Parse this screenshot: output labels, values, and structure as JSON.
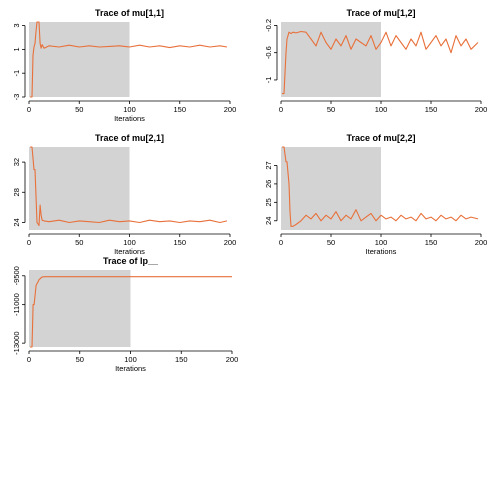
{
  "chart_data": [
    {
      "type": "line",
      "title": "Trace of  mu[1,1]",
      "xlabel": "Iterations",
      "ylabel": "",
      "xlim": [
        0,
        200
      ],
      "ylim": [
        -3,
        3.3
      ],
      "xticks": [
        0,
        50,
        100,
        150,
        200
      ],
      "yticks": [
        -3,
        -1,
        1,
        3
      ],
      "warmup_end": 100,
      "line_color": "#e8703a",
      "shade_color": "#d3d3d3",
      "series": [
        {
          "name": "",
          "x": [
            1,
            3,
            4,
            5,
            6,
            7,
            8,
            9,
            10,
            11,
            12,
            13,
            15,
            20,
            30,
            40,
            50,
            60,
            70,
            80,
            90,
            100,
            110,
            120,
            130,
            140,
            150,
            160,
            170,
            180,
            190,
            197
          ],
          "values": [
            -3,
            -3,
            0.5,
            1.2,
            1.5,
            2.5,
            3.3,
            3.3,
            3.3,
            1.5,
            1.1,
            1.4,
            1.1,
            1.3,
            1.2,
            1.35,
            1.2,
            1.3,
            1.2,
            1.25,
            1.3,
            1.2,
            1.35,
            1.2,
            1.3,
            1.15,
            1.3,
            1.2,
            1.35,
            1.2,
            1.3,
            1.2
          ]
        }
      ]
    },
    {
      "type": "line",
      "title": "Trace of  mu[1,2]",
      "xlabel": "",
      "ylabel": "",
      "xlim": [
        0,
        200
      ],
      "ylim": [
        -1.25,
        -0.15
      ],
      "xticks": [
        0,
        50,
        100,
        150,
        200
      ],
      "yticks": [
        -1.0,
        -0.6,
        -0.2
      ],
      "warmup_end": 100,
      "line_color": "#e8703a",
      "shade_color": "#d3d3d3",
      "series": [
        {
          "name": "",
          "x": [
            1,
            3,
            4,
            5,
            6,
            7,
            8,
            10,
            12,
            15,
            20,
            25,
            30,
            35,
            40,
            45,
            50,
            55,
            60,
            65,
            70,
            75,
            80,
            85,
            90,
            95,
            100,
            105,
            110,
            115,
            120,
            125,
            130,
            135,
            140,
            145,
            150,
            155,
            160,
            165,
            170,
            175,
            180,
            185,
            190,
            197
          ],
          "values": [
            -1.2,
            -1.2,
            -0.9,
            -0.6,
            -0.4,
            -0.35,
            -0.3,
            -0.32,
            -0.3,
            -0.31,
            -0.29,
            -0.3,
            -0.4,
            -0.5,
            -0.3,
            -0.45,
            -0.55,
            -0.4,
            -0.5,
            -0.35,
            -0.55,
            -0.4,
            -0.45,
            -0.5,
            -0.35,
            -0.55,
            -0.45,
            -0.3,
            -0.5,
            -0.35,
            -0.45,
            -0.55,
            -0.4,
            -0.5,
            -0.3,
            -0.55,
            -0.45,
            -0.35,
            -0.5,
            -0.4,
            -0.6,
            -0.35,
            -0.5,
            -0.4,
            -0.55,
            -0.45
          ]
        }
      ]
    },
    {
      "type": "line",
      "title": "Trace of  mu[2,1]",
      "xlabel": "Iterations",
      "ylabel": "",
      "xlim": [
        0,
        200
      ],
      "ylim": [
        23,
        34
      ],
      "xticks": [
        0,
        50,
        100,
        150,
        200
      ],
      "yticks": [
        24,
        28,
        32
      ],
      "warmup_end": 100,
      "line_color": "#e8703a",
      "shade_color": "#d3d3d3",
      "series": [
        {
          "name": "",
          "x": [
            1,
            3,
            5,
            6,
            8,
            10,
            11,
            12,
            13,
            15,
            20,
            30,
            40,
            50,
            60,
            70,
            80,
            90,
            100,
            110,
            120,
            130,
            140,
            150,
            160,
            170,
            180,
            190,
            197
          ],
          "values": [
            34,
            34,
            31,
            31,
            24,
            23.6,
            26.3,
            25,
            24.3,
            24.2,
            24.1,
            24.3,
            24.0,
            24.2,
            24.1,
            24.0,
            24.3,
            24.1,
            24.2,
            24.0,
            24.3,
            24.1,
            24.2,
            24.0,
            24.2,
            24.1,
            24.3,
            24.0,
            24.2
          ]
        }
      ]
    },
    {
      "type": "line",
      "title": "Trace of  mu[2,2]",
      "xlabel": "Iterations",
      "ylabel": "",
      "xlim": [
        0,
        200
      ],
      "ylim": [
        23.5,
        28
      ],
      "xticks": [
        0,
        50,
        100,
        150,
        200
      ],
      "yticks": [
        24,
        25,
        26,
        27
      ],
      "warmup_end": 100,
      "line_color": "#e8703a",
      "shade_color": "#d3d3d3",
      "series": [
        {
          "name": "",
          "x": [
            1,
            3,
            5,
            6,
            8,
            9,
            10,
            12,
            15,
            20,
            25,
            30,
            35,
            40,
            45,
            50,
            55,
            60,
            65,
            70,
            75,
            80,
            85,
            90,
            95,
            100,
            105,
            110,
            115,
            120,
            125,
            130,
            135,
            140,
            145,
            150,
            155,
            160,
            165,
            170,
            175,
            180,
            185,
            190,
            197
          ],
          "values": [
            28,
            28,
            27.2,
            27.2,
            26,
            24.5,
            23.7,
            23.7,
            23.8,
            24.0,
            24.3,
            24.1,
            24.4,
            24.0,
            24.3,
            24.1,
            24.5,
            24.0,
            24.3,
            24.1,
            24.6,
            24.0,
            24.2,
            24.4,
            24.0,
            24.3,
            24.1,
            24.2,
            24.0,
            24.3,
            24.1,
            24.2,
            24.0,
            24.4,
            24.1,
            24.2,
            24.0,
            24.3,
            24.1,
            24.2,
            24.0,
            24.3,
            24.1,
            24.2,
            24.1
          ]
        }
      ]
    },
    {
      "type": "line",
      "title": "Trace of  lp__",
      "xlabel": "Iterations",
      "ylabel": "",
      "xlim": [
        0,
        200
      ],
      "ylim": [
        -13200,
        -9200
      ],
      "xticks": [
        0,
        50,
        100,
        150,
        200
      ],
      "yticks": [
        -13000,
        -11000,
        -9500
      ],
      "warmup_end": 100,
      "line_color": "#e8703a",
      "shade_color": "#d3d3d3",
      "series": [
        {
          "name": "",
          "x": [
            1,
            3,
            4,
            5,
            6,
            7,
            8,
            9,
            10,
            11,
            12,
            13,
            14,
            15,
            20,
            50,
            100,
            150,
            200
          ],
          "values": [
            -13200,
            -13200,
            -11000,
            -11000,
            -10500,
            -10000,
            -9900,
            -9800,
            -9700,
            -9650,
            -9600,
            -9560,
            -9560,
            -9550,
            -9550,
            -9550,
            -9550,
            -9550,
            -9550
          ]
        }
      ]
    }
  ]
}
